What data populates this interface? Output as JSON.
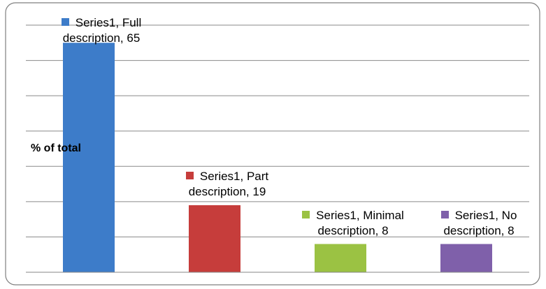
{
  "chart_data": {
    "type": "bar",
    "y_label": "% of total",
    "categories": [
      "Full description",
      "Part description",
      "Minimal description",
      "No description"
    ],
    "series": [
      {
        "name": "Series1",
        "values": [
          65,
          19,
          8,
          8
        ],
        "value_labels": [
          "Series1, Full description, 65",
          "Series1, Part description, 19",
          "Series1, Minimal description, 8",
          "Series1, No description, 8"
        ],
        "colors": [
          "#3d7cc9",
          "#c63d3b",
          "#9bc243",
          "#7f60aa"
        ]
      }
    ],
    "ylim": [
      0,
      70
    ],
    "yticks": [
      0,
      10,
      20,
      30,
      40,
      50,
      60,
      70
    ],
    "grid": true
  }
}
